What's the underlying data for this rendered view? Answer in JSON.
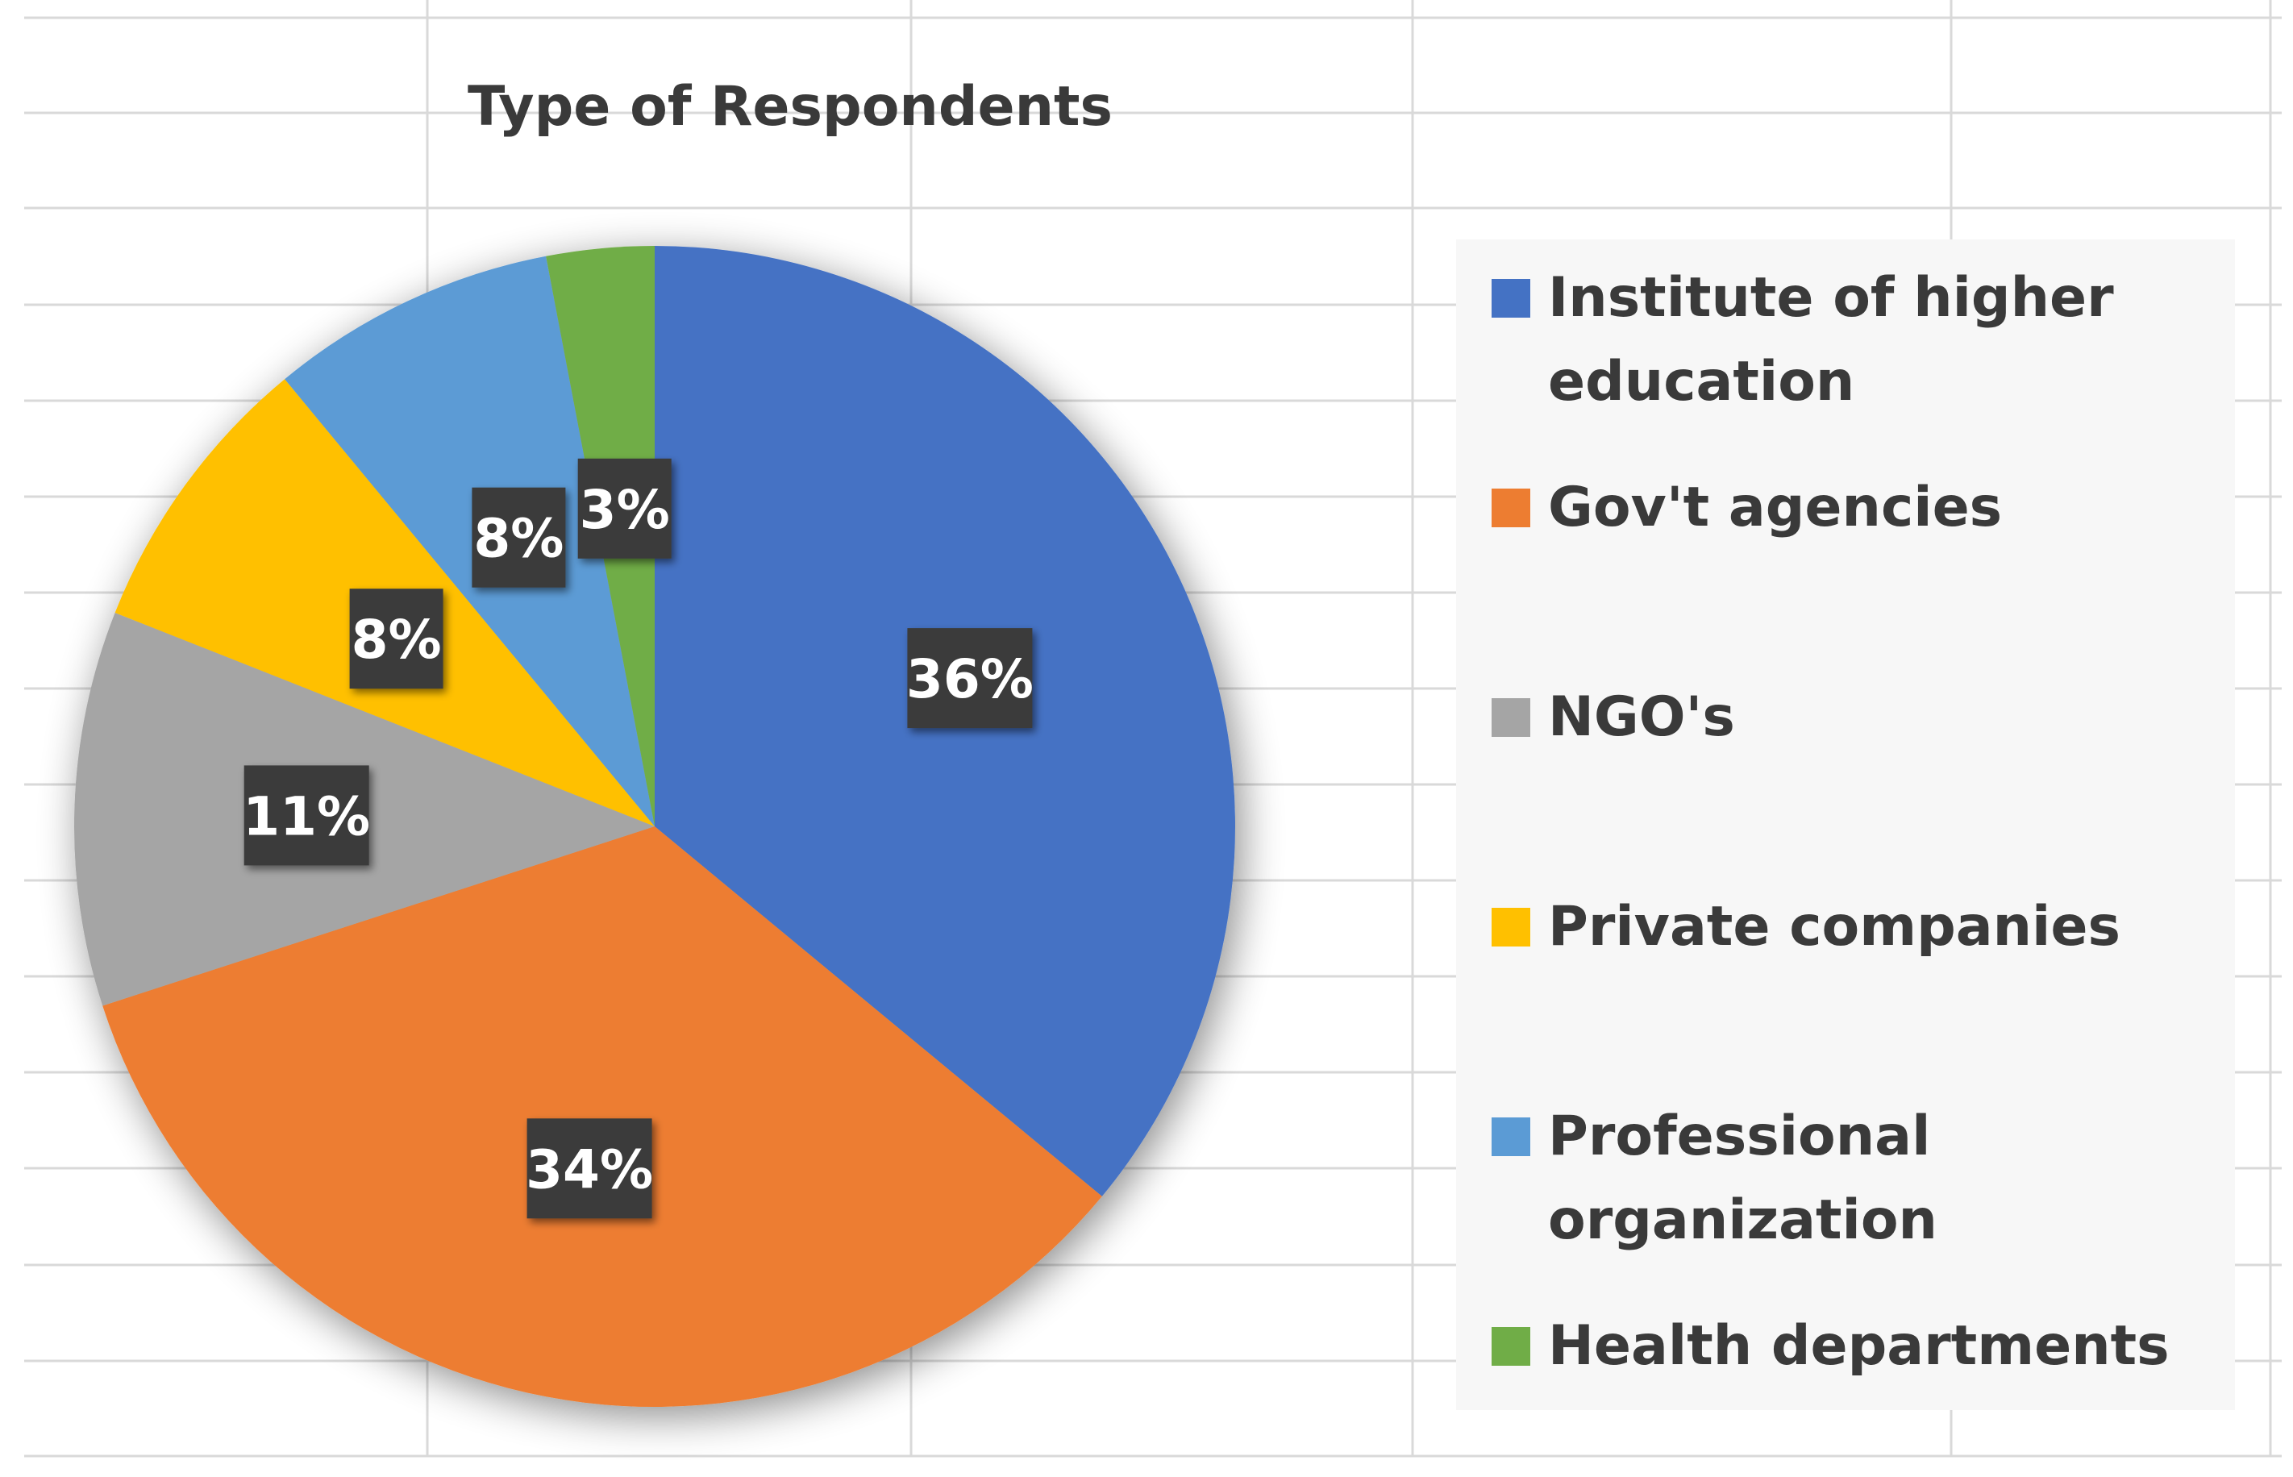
{
  "chart_data": {
    "type": "pie",
    "title": "Type of Respondents",
    "categories": [
      "Institute of higher education",
      "Gov't agencies",
      "NGO's",
      "Private companies",
      "Professional organization",
      "Health departments"
    ],
    "values": [
      36,
      34,
      11,
      8,
      8,
      3
    ],
    "labels": [
      "36%",
      "34%",
      "11%",
      "8%",
      "8%",
      "3%"
    ],
    "legend_lines": [
      [
        "Institute of higher",
        "education"
      ],
      [
        "Gov't agencies"
      ],
      [
        "NGO's"
      ],
      [
        "Private companies"
      ],
      [
        "Professional",
        "organization"
      ],
      [
        "Health departments"
      ]
    ],
    "colors": [
      "#4472C4",
      "#ED7D31",
      "#A5A5A5",
      "#FFC000",
      "#5B9BD5",
      "#70AD47"
    ],
    "legend_position": "right",
    "data_label_style": "dark box, white text",
    "background": "spreadsheet grid"
  }
}
